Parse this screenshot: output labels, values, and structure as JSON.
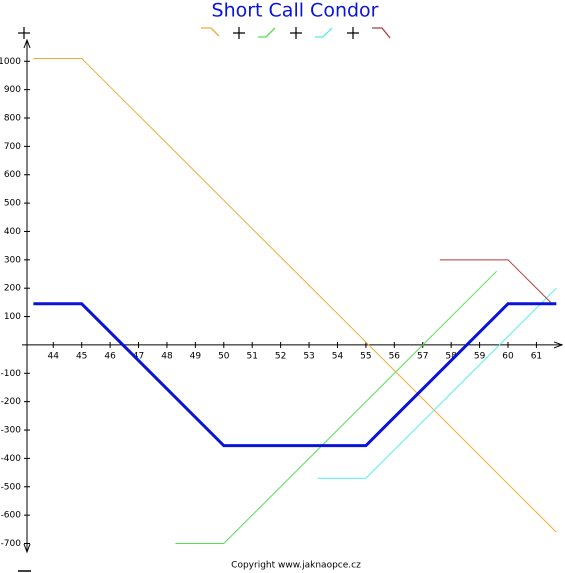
{
  "chart_data": {
    "type": "line",
    "title": "Short Call Condor",
    "footer": "Copyright www.jaknaopce.cz",
    "xlim": [
      42.9,
      61.9
    ],
    "ylim": [
      -730,
      1075
    ],
    "xticks": [
      44,
      45,
      46,
      47,
      48,
      49,
      50,
      51,
      52,
      53,
      54,
      55,
      56,
      57,
      58,
      59,
      60,
      61
    ],
    "yticks": [
      -700,
      -600,
      -500,
      -400,
      -300,
      -200,
      -100,
      100,
      200,
      300,
      400,
      500,
      600,
      700,
      800,
      900,
      1000
    ],
    "series": [
      {
        "color": "#f5a83a",
        "width": 1,
        "x": [
          43.3,
          45,
          61.7
        ],
        "values": [
          1010,
          1010,
          -660
        ]
      },
      {
        "color": "#55e055",
        "width": 1,
        "x": [
          48.3,
          50,
          59.6
        ],
        "values": [
          -700,
          -700,
          260
        ]
      },
      {
        "color": "#55eeee",
        "width": 1,
        "x": [
          53.3,
          55,
          61.7
        ],
        "values": [
          -470,
          -470,
          200
        ]
      },
      {
        "color": "#b03a3a",
        "width": 1,
        "x": [
          57.6,
          60,
          61.5
        ],
        "values": [
          300,
          300,
          150
        ]
      },
      {
        "color": "#0a14d8",
        "width": 3,
        "x": [
          43.3,
          45,
          50,
          55,
          60,
          61.7
        ],
        "values": [
          145,
          145,
          -355,
          -355,
          145,
          145
        ]
      }
    ]
  }
}
